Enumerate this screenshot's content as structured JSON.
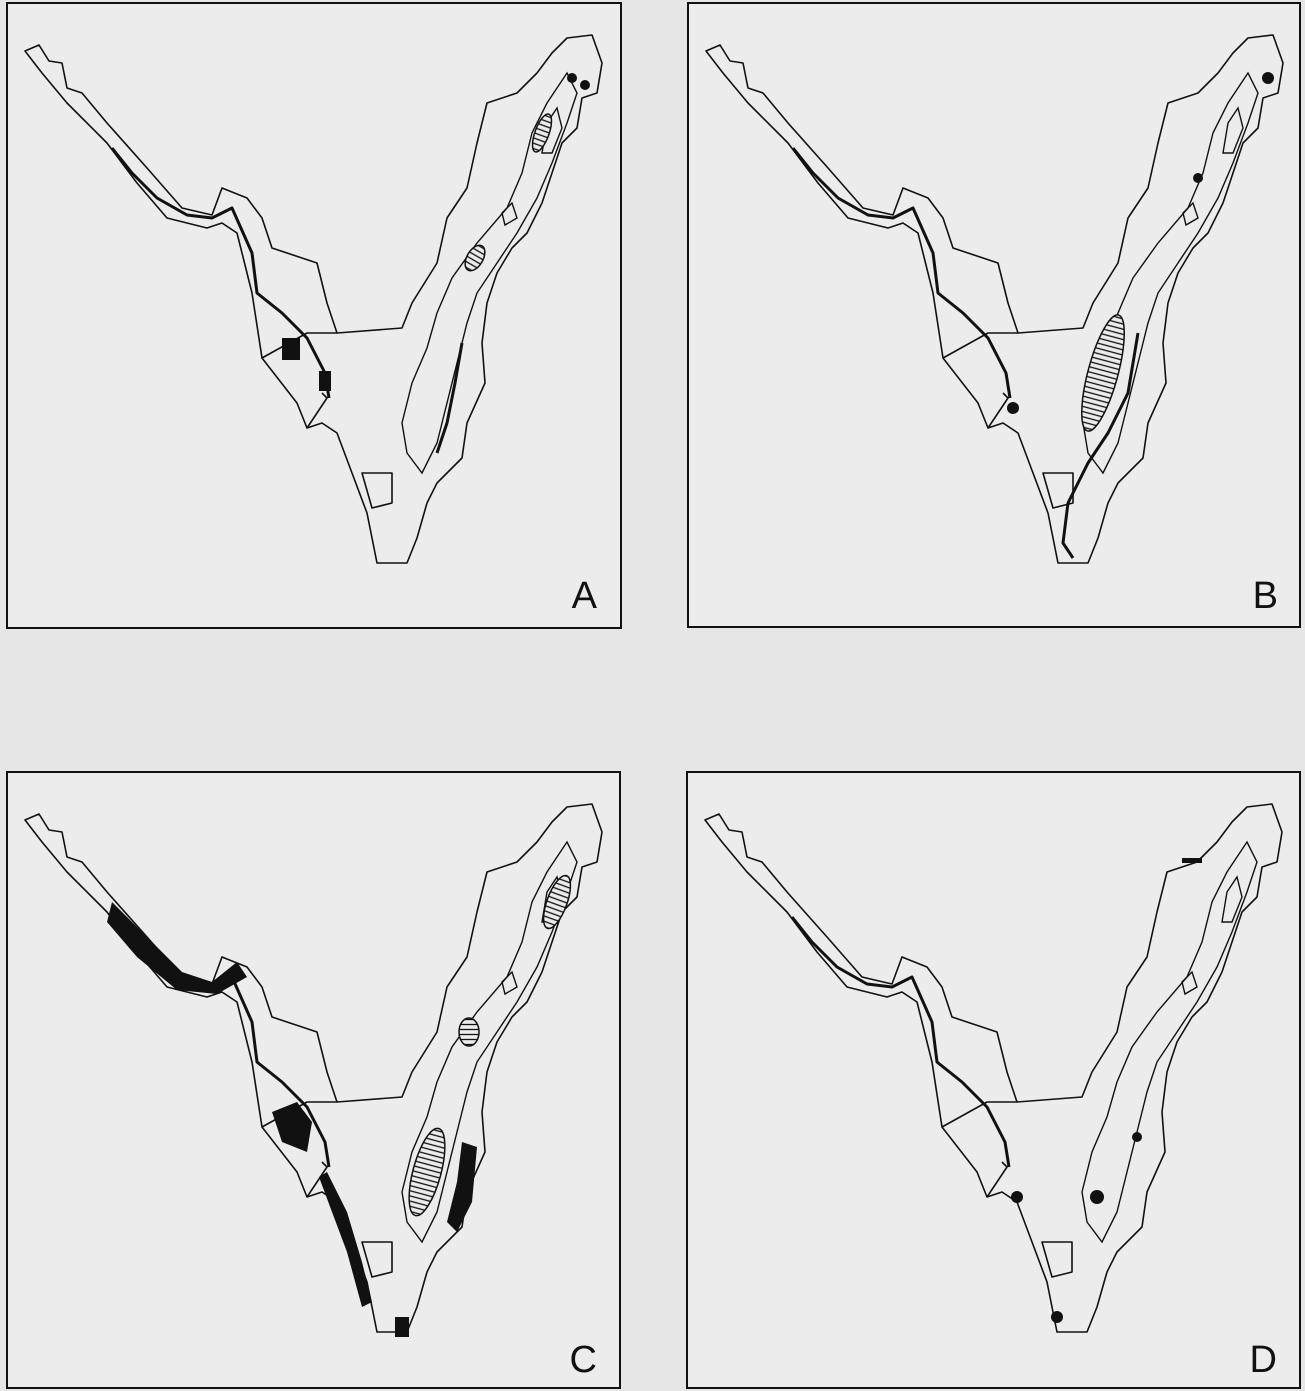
{
  "panels": [
    {
      "label": "A"
    },
    {
      "label": "B"
    },
    {
      "label": "C"
    },
    {
      "label": "D"
    }
  ]
}
